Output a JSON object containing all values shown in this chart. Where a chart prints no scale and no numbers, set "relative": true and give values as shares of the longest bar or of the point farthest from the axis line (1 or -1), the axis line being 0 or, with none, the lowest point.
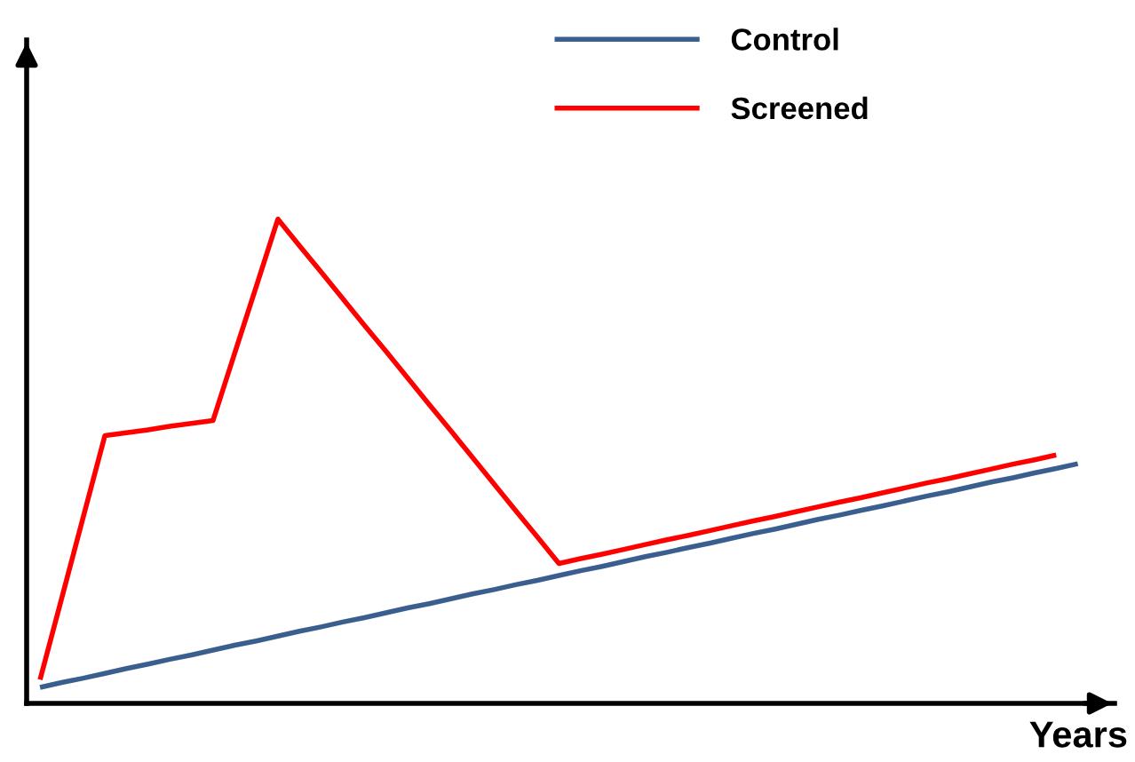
{
  "chart_data": {
    "type": "line",
    "relative": true,
    "xlabel": "Years",
    "legend": "top right",
    "categories": [
      null,
      null,
      null,
      null,
      null,
      null,
      null,
      null,
      null,
      null,
      null,
      null,
      null,
      null,
      null,
      null,
      null,
      null,
      null,
      null,
      null,
      null,
      null,
      null,
      null,
      null,
      null,
      null,
      null,
      null,
      null,
      null,
      null,
      null,
      null,
      null,
      null,
      null,
      null,
      null,
      null,
      null,
      null,
      null,
      null,
      null,
      null,
      null,
      null
    ],
    "series": [
      {
        "name": "Control",
        "color": "#3a5f8f",
        "values": [
          0.033,
          0.043,
          0.052,
          0.062,
          0.072,
          0.081,
          0.091,
          0.1,
          0.11,
          0.12,
          0.129,
          0.139,
          0.149,
          0.158,
          0.168,
          0.177,
          0.187,
          0.197,
          0.206,
          0.216,
          0.226,
          0.235,
          0.245,
          0.254,
          0.264,
          0.274,
          0.283,
          0.293,
          0.303,
          0.312,
          0.322,
          0.331,
          0.341,
          0.351,
          0.36,
          0.37,
          0.38,
          0.389,
          0.399,
          0.408,
          0.418,
          0.428,
          0.437,
          0.447,
          0.457,
          0.466,
          0.476,
          0.485,
          0.495
        ]
      },
      {
        "name": "Screened",
        "color": "#ff0000",
        "values": [
          0.049,
          0.217,
          0.385,
          0.553,
          0.559,
          0.565,
          0.572,
          0.578,
          0.584,
          0.723,
          0.861,
          1.0,
          0.945,
          0.891,
          0.836,
          0.781,
          0.727,
          0.672,
          0.617,
          0.563,
          0.508,
          0.453,
          0.398,
          0.344,
          0.289,
          0.299,
          0.308,
          0.318,
          0.328,
          0.338,
          0.347,
          0.357,
          0.367,
          0.377,
          0.386,
          0.396,
          0.406,
          0.416,
          0.425,
          0.435,
          0.445,
          0.455,
          0.464,
          0.474,
          0.484,
          0.494,
          0.503,
          0.513,
          null
        ]
      }
    ]
  }
}
